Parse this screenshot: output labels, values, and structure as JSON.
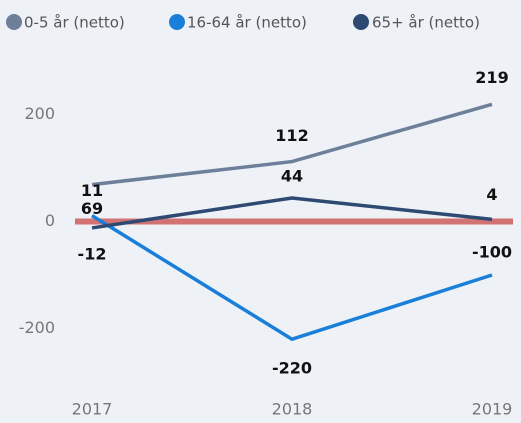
{
  "chart_data": {
    "type": "line",
    "categories": [
      "2017",
      "2018",
      "2019"
    ],
    "series": [
      {
        "name": "0-5 år (netto)",
        "color": "#6e7f9a",
        "values": [
          69,
          112,
          219
        ]
      },
      {
        "name": "16-64 år (netto)",
        "color": "#1a7fd8",
        "values": [
          11,
          -220,
          -100
        ]
      },
      {
        "name": "65+ år (netto)",
        "color": "#2e4a72",
        "values": [
          -12,
          44,
          4
        ]
      }
    ],
    "ylim": [
      -300,
      300
    ],
    "yticks": [
      -200,
      0,
      200
    ],
    "grid": false,
    "zero_line_color": "#d27373",
    "legend": "top"
  }
}
